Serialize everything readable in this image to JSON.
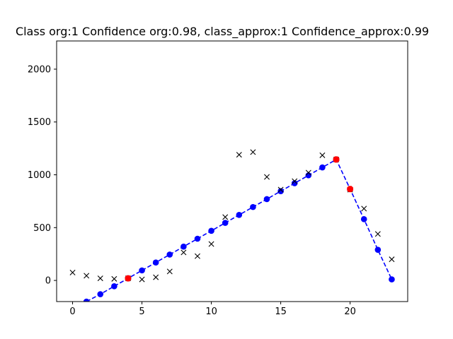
{
  "chart_data": {
    "type": "line",
    "title": "Class org:1  Confidence org:0.98, class_approx:1 Confidence_approx:0.99",
    "xlabel": "",
    "ylabel": "",
    "xlim": [
      -1.15,
      24.15
    ],
    "ylim": [
      -200,
      2267
    ],
    "xticks": [
      0,
      5,
      10,
      15,
      20
    ],
    "yticks": [
      0,
      500,
      1000,
      1500,
      2000
    ],
    "grid": false,
    "legend": "none",
    "colors": {
      "approx": "#0000ff",
      "breakpoints": "#ff0000",
      "original": "#000000"
    },
    "series": [
      {
        "role": "approx",
        "style": "dashed-line-with-dots",
        "x": [
          1,
          2,
          3,
          4,
          5,
          6,
          7,
          8,
          9,
          10,
          11,
          12,
          13,
          14,
          15,
          16,
          17,
          18,
          19,
          20,
          21,
          22,
          23
        ],
        "y": [
          -200,
          -130,
          -55,
          20,
          95,
          170,
          245,
          320,
          395,
          470,
          545,
          620,
          695,
          770,
          845,
          920,
          995,
          1070,
          1145,
          865,
          580,
          290,
          10
        ]
      },
      {
        "role": "breakpoints",
        "style": "markers",
        "x": [
          4,
          19,
          20
        ],
        "y": [
          20,
          1145,
          865
        ]
      },
      {
        "role": "original",
        "style": "x-markers",
        "x": [
          0,
          1,
          2,
          3,
          4,
          5,
          6,
          7,
          8,
          9,
          10,
          11,
          12,
          13,
          14,
          15,
          16,
          17,
          18,
          19,
          20,
          21,
          22,
          23
        ],
        "y": [
          75,
          45,
          20,
          15,
          20,
          10,
          30,
          85,
          265,
          230,
          345,
          600,
          1190,
          1215,
          980,
          860,
          940,
          1020,
          1185,
          1145,
          860,
          680,
          440,
          200
        ]
      }
    ]
  }
}
